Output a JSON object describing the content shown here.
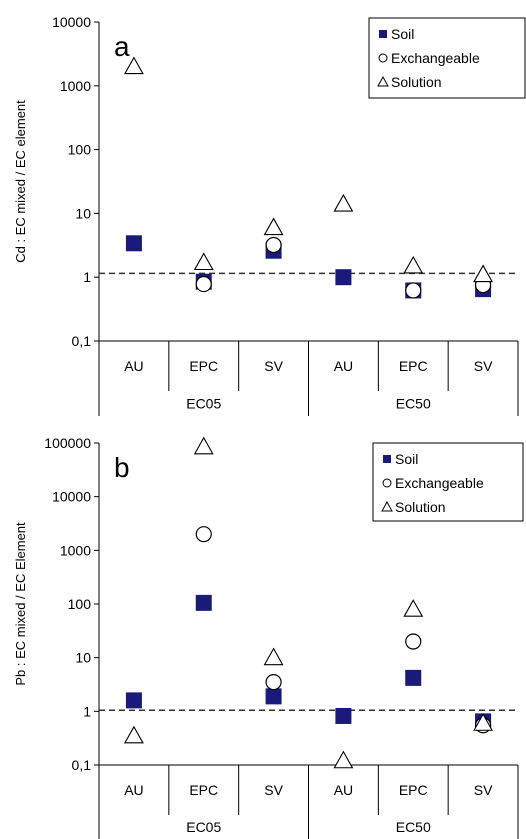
{
  "chart_data": [
    {
      "type": "scatter",
      "panel_label": "a",
      "ylabel": "Cd : EC mixed / EC element",
      "yscale": "log",
      "ylim": [
        0.1,
        10000
      ],
      "yticks": [
        "0,1",
        "1",
        "10",
        "100",
        "1000",
        "10000"
      ],
      "categories": [
        "AU",
        "EPC",
        "SV",
        "AU",
        "EPC",
        "SV"
      ],
      "groups": [
        {
          "label": "EC05",
          "span": [
            0,
            2
          ]
        },
        {
          "label": "EC50",
          "span": [
            3,
            5
          ]
        }
      ],
      "reference_line": 1.15,
      "legend": {
        "position": "top-right",
        "entries": [
          "Soil",
          "Exchangeable",
          "Solution"
        ]
      },
      "series": [
        {
          "name": "Soil",
          "marker": "filled-square",
          "color": "#1a1a7a",
          "values": [
            3.4,
            0.85,
            2.6,
            1.0,
            0.62,
            0.65
          ]
        },
        {
          "name": "Exchangeable",
          "marker": "open-circle",
          "color": "#000000",
          "values": [
            null,
            0.78,
            3.2,
            null,
            0.62,
            0.75
          ]
        },
        {
          "name": "Solution",
          "marker": "open-triangle",
          "color": "#000000",
          "values": [
            2000,
            1.7,
            6.0,
            14.0,
            1.5,
            1.1
          ]
        }
      ]
    },
    {
      "type": "scatter",
      "panel_label": "b",
      "ylabel": "Pb : EC mixed / EC Element",
      "yscale": "log",
      "ylim": [
        0.1,
        100000
      ],
      "yticks": [
        "0,1",
        "1",
        "10",
        "100",
        "1000",
        "10000",
        "100000"
      ],
      "categories": [
        "AU",
        "EPC",
        "SV",
        "AU",
        "EPC",
        "SV"
      ],
      "groups": [
        {
          "label": "EC05",
          "span": [
            0,
            2
          ]
        },
        {
          "label": "EC50",
          "span": [
            3,
            5
          ]
        }
      ],
      "reference_line": 1.05,
      "legend": {
        "position": "top-right",
        "entries": [
          "Soil",
          "Exchangeable",
          "Solution"
        ]
      },
      "series": [
        {
          "name": "Soil",
          "marker": "filled-square",
          "color": "#1a1a7a",
          "values": [
            1.6,
            105,
            1.9,
            0.82,
            4.2,
            0.65
          ]
        },
        {
          "name": "Exchangeable",
          "marker": "open-circle",
          "color": "#000000",
          "values": [
            null,
            2000,
            3.5,
            null,
            20,
            0.55
          ]
        },
        {
          "name": "Solution",
          "marker": "open-triangle",
          "color": "#000000",
          "values": [
            0.35,
            85000,
            10,
            0.12,
            80,
            0.6
          ]
        }
      ]
    }
  ]
}
